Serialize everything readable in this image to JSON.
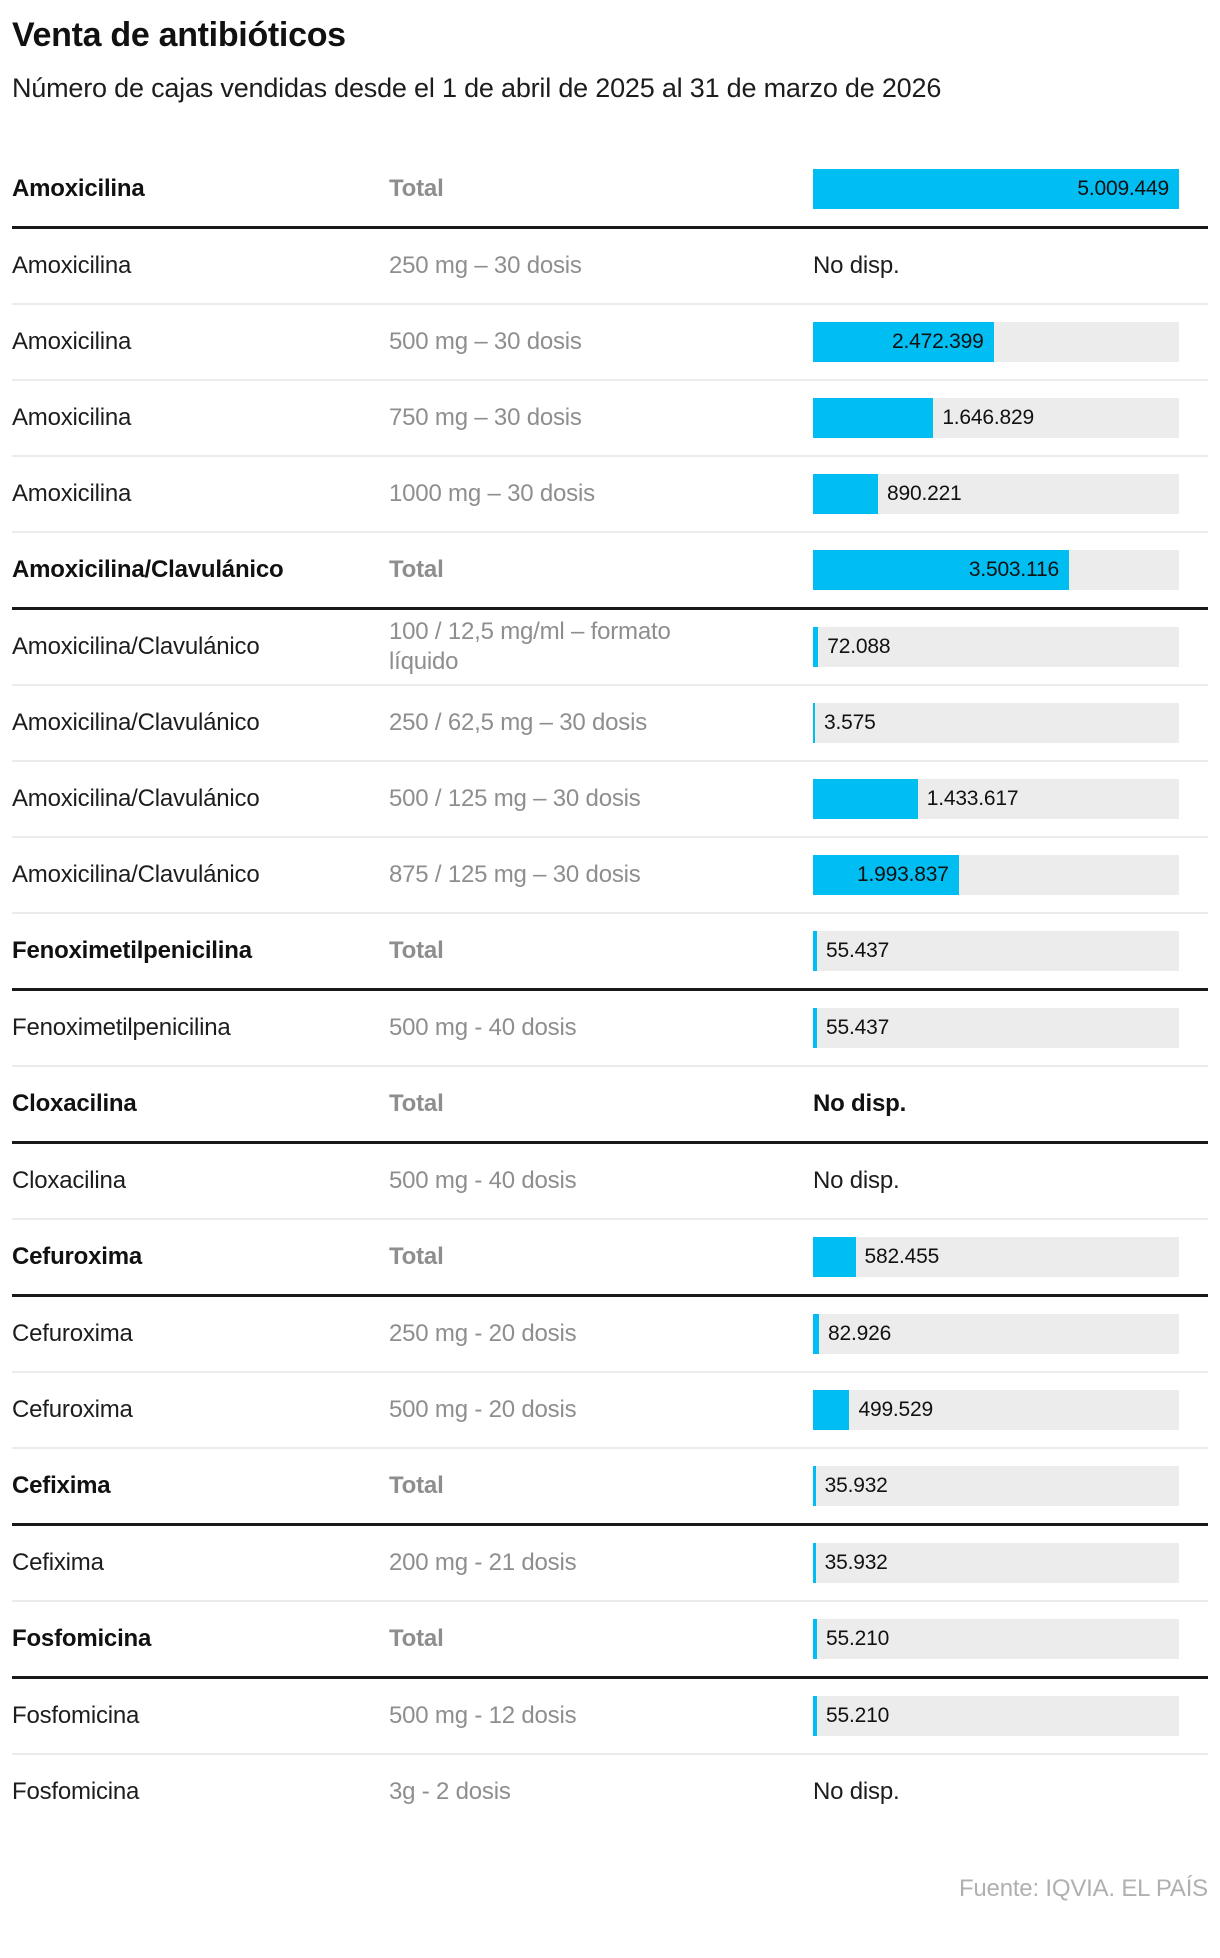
{
  "header": {
    "title": "Venta de antibióticos",
    "subtitle": "Número de cajas vendidas desde el 1 de abril de 2025 al 31 de marzo de 2026"
  },
  "footer": {
    "source": "Fuente: IQVIA. EL PAÍS"
  },
  "colors": {
    "bar": "#00bdf2",
    "bar_track": "#ececec",
    "divider_light": "#ebebeb",
    "divider_dark": "#191919"
  },
  "chart_data": {
    "type": "bar",
    "title": "Venta de antibióticos",
    "subtitle": "Número de cajas vendidas desde el 1 de abril de 2025 al 31 de marzo de 2026",
    "orientation": "horizontal",
    "max_value": 5009449,
    "no_data_label": "No disp.",
    "rows": [
      {
        "drug": "Amoxicilina",
        "dose": "Total",
        "value": 5009449,
        "label": "5.009.449",
        "is_total": true,
        "label_inside": true
      },
      {
        "drug": "Amoxicilina",
        "dose": "250 mg – 30 dosis",
        "value": null,
        "label": "No disp.",
        "is_total": false,
        "label_inside": false
      },
      {
        "drug": "Amoxicilina",
        "dose": "500 mg – 30 dosis",
        "value": 2472399,
        "label": "2.472.399",
        "is_total": false,
        "label_inside": true
      },
      {
        "drug": "Amoxicilina",
        "dose": "750 mg – 30 dosis",
        "value": 1646829,
        "label": "1.646.829",
        "is_total": false,
        "label_inside": false
      },
      {
        "drug": "Amoxicilina",
        "dose": "1000 mg – 30 dosis",
        "value": 890221,
        "label": "890.221",
        "is_total": false,
        "label_inside": false
      },
      {
        "drug": "Amoxicilina/Clavulánico",
        "dose": "Total",
        "value": 3503116,
        "label": "3.503.116",
        "is_total": true,
        "label_inside": true
      },
      {
        "drug": "Amoxicilina/Clavulánico",
        "dose": "100 / 12,5 mg/ml – formato líquido",
        "value": 72088,
        "label": "72.088",
        "is_total": false,
        "label_inside": false
      },
      {
        "drug": "Amoxicilina/Clavulánico",
        "dose": "250 / 62,5 mg – 30 dosis",
        "value": 3575,
        "label": "3.575",
        "is_total": false,
        "label_inside": false
      },
      {
        "drug": "Amoxicilina/Clavulánico",
        "dose": "500 / 125 mg – 30 dosis",
        "value": 1433617,
        "label": "1.433.617",
        "is_total": false,
        "label_inside": false
      },
      {
        "drug": "Amoxicilina/Clavulánico",
        "dose": "875 / 125 mg – 30 dosis",
        "value": 1993837,
        "label": "1.993.837",
        "is_total": false,
        "label_inside": true
      },
      {
        "drug": "Fenoximetilpenicilina",
        "dose": "Total",
        "value": 55437,
        "label": "55.437",
        "is_total": true,
        "label_inside": false
      },
      {
        "drug": "Fenoximetilpenicilina",
        "dose": "500 mg - 40 dosis",
        "value": 55437,
        "label": "55.437",
        "is_total": false,
        "label_inside": false
      },
      {
        "drug": "Cloxacilina",
        "dose": "Total",
        "value": null,
        "label": "No disp.",
        "is_total": true,
        "label_inside": false
      },
      {
        "drug": "Cloxacilina",
        "dose": "500 mg - 40 dosis",
        "value": null,
        "label": "No disp.",
        "is_total": false,
        "label_inside": false
      },
      {
        "drug": "Cefuroxima",
        "dose": "Total",
        "value": 582455,
        "label": "582.455",
        "is_total": true,
        "label_inside": false
      },
      {
        "drug": "Cefuroxima",
        "dose": "250 mg - 20 dosis",
        "value": 82926,
        "label": "82.926",
        "is_total": false,
        "label_inside": false
      },
      {
        "drug": "Cefuroxima",
        "dose": "500 mg - 20 dosis",
        "value": 499529,
        "label": "499.529",
        "is_total": false,
        "label_inside": false
      },
      {
        "drug": "Cefixima",
        "dose": "Total",
        "value": 35932,
        "label": "35.932",
        "is_total": true,
        "label_inside": false
      },
      {
        "drug": "Cefixima",
        "dose": "200 mg - 21 dosis",
        "value": 35932,
        "label": "35.932",
        "is_total": false,
        "label_inside": false
      },
      {
        "drug": "Fosfomicina",
        "dose": "Total",
        "value": 55210,
        "label": "55.210",
        "is_total": true,
        "label_inside": false
      },
      {
        "drug": "Fosfomicina",
        "dose": "500 mg - 12 dosis",
        "value": 55210,
        "label": "55.210",
        "is_total": false,
        "label_inside": false
      },
      {
        "drug": "Fosfomicina",
        "dose": "3g - 2 dosis",
        "value": null,
        "label": "No disp.",
        "is_total": false,
        "label_inside": false
      }
    ],
    "source": "Fuente: IQVIA. EL PAÍS"
  }
}
